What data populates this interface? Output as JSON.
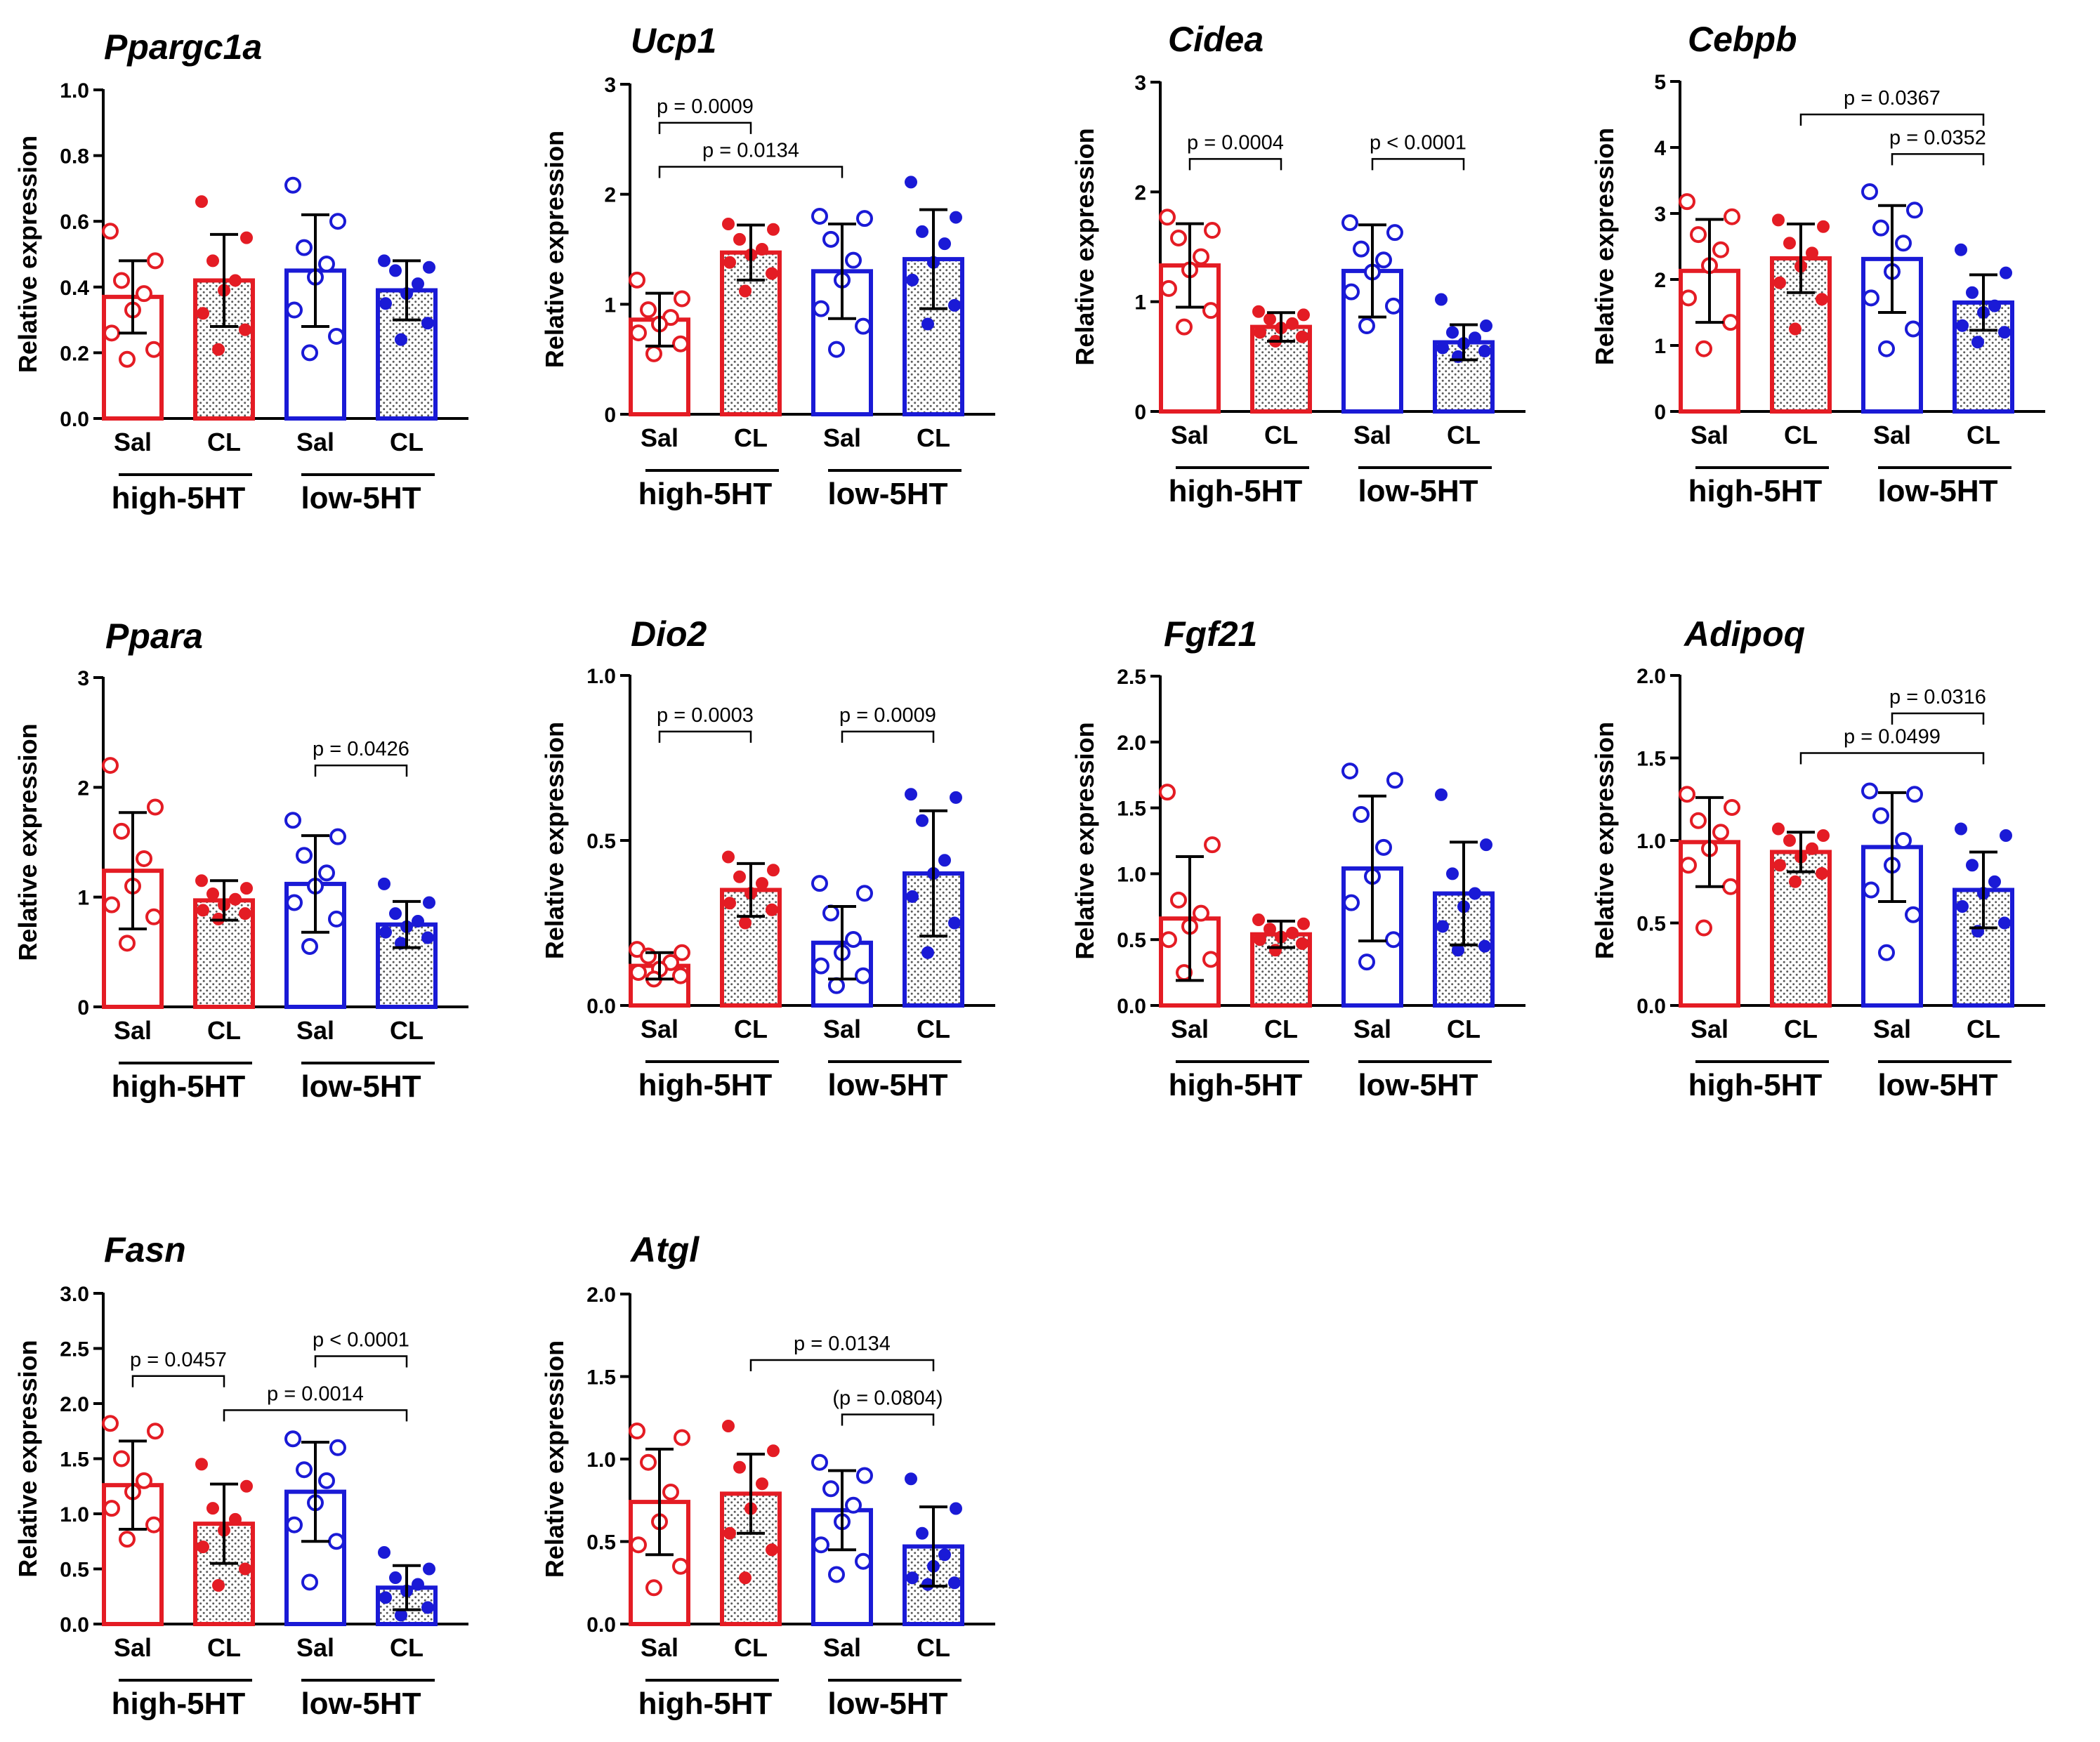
{
  "chart_data": [
    {
      "type": "bar",
      "title": "Ppargc1a",
      "ylabel": "Relative expression",
      "ylim": [
        0,
        1.0
      ],
      "yticks": [
        "0.0",
        "0.2",
        "0.4",
        "0.6",
        "0.8",
        "1.0"
      ],
      "categories": [
        "Sal",
        "CL",
        "Sal",
        "CL"
      ],
      "groups": [
        "high-5HT",
        "low-5HT"
      ],
      "means": [
        0.37,
        0.42,
        0.45,
        0.39
      ],
      "sd": [
        0.11,
        0.14,
        0.17,
        0.09
      ],
      "points": [
        [
          0.57,
          0.48,
          0.42,
          0.38,
          0.33,
          0.26,
          0.21,
          0.18
        ],
        [
          0.66,
          0.55,
          0.48,
          0.42,
          0.39,
          0.32,
          0.27,
          0.21
        ],
        [
          0.71,
          0.6,
          0.52,
          0.47,
          0.43,
          0.33,
          0.25,
          0.2
        ],
        [
          0.48,
          0.46,
          0.45,
          0.41,
          0.38,
          0.35,
          0.29,
          0.24
        ]
      ],
      "comparisons": []
    },
    {
      "type": "bar",
      "title": "Ucp1",
      "ylabel": "Relative expression",
      "ylim": [
        0,
        3
      ],
      "yticks": [
        "0",
        "1",
        "2",
        "3"
      ],
      "categories": [
        "Sal",
        "CL",
        "Sal",
        "CL"
      ],
      "groups": [
        "high-5HT",
        "low-5HT"
      ],
      "means": [
        0.86,
        1.47,
        1.3,
        1.41
      ],
      "sd": [
        0.24,
        0.25,
        0.43,
        0.45
      ],
      "points": [
        [
          1.22,
          1.05,
          0.95,
          0.88,
          0.82,
          0.74,
          0.64,
          0.55
        ],
        [
          1.73,
          1.68,
          1.59,
          1.5,
          1.45,
          1.38,
          1.28,
          1.12
        ],
        [
          1.8,
          1.78,
          1.59,
          1.4,
          1.22,
          0.96,
          0.8,
          0.59
        ],
        [
          2.11,
          1.79,
          1.66,
          1.55,
          1.38,
          1.22,
          0.99,
          0.82
        ]
      ],
      "comparisons": [
        {
          "label": "p = 0.0009",
          "from": 0,
          "to": 1,
          "y": 2.65
        },
        {
          "label": "p = 0.0134",
          "from": 0,
          "to": 2,
          "y": 2.25
        }
      ]
    },
    {
      "type": "bar",
      "title": "Cidea",
      "ylabel": "Relative expression",
      "ylim": [
        0,
        3
      ],
      "yticks": [
        "0",
        "1",
        "2",
        "3"
      ],
      "categories": [
        "Sal",
        "CL",
        "Sal",
        "CL"
      ],
      "groups": [
        "high-5HT",
        "low-5HT"
      ],
      "means": [
        1.33,
        0.77,
        1.28,
        0.63
      ],
      "sd": [
        0.38,
        0.13,
        0.42,
        0.16
      ],
      "points": [
        [
          1.77,
          1.65,
          1.58,
          1.41,
          1.29,
          1.12,
          0.92,
          0.77
        ],
        [
          0.91,
          0.88,
          0.84,
          0.8,
          0.76,
          0.72,
          0.68,
          0.64
        ],
        [
          1.72,
          1.63,
          1.48,
          1.38,
          1.27,
          1.09,
          0.96,
          0.78
        ],
        [
          1.02,
          0.78,
          0.72,
          0.67,
          0.62,
          0.58,
          0.55,
          0.5
        ]
      ],
      "comparisons": [
        {
          "label": "p = 0.0004",
          "from": 0,
          "to": 1,
          "y": 2.3
        },
        {
          "label": "p < 0.0001",
          "from": 2,
          "to": 3,
          "y": 2.3
        }
      ]
    },
    {
      "type": "bar",
      "title": "Cebpb",
      "ylabel": "Relative expression",
      "ylim": [
        0,
        5
      ],
      "yticks": [
        "0",
        "1",
        "2",
        "3",
        "4",
        "5"
      ],
      "categories": [
        "Sal",
        "CL",
        "Sal",
        "CL"
      ],
      "groups": [
        "high-5HT",
        "low-5HT"
      ],
      "means": [
        2.13,
        2.32,
        2.31,
        1.65
      ],
      "sd": [
        0.78,
        0.52,
        0.81,
        0.42
      ],
      "points": [
        [
          3.18,
          2.95,
          2.68,
          2.45,
          2.21,
          1.72,
          1.35,
          0.95
        ],
        [
          2.9,
          2.8,
          2.55,
          2.4,
          2.2,
          1.95,
          1.7,
          1.25
        ],
        [
          3.33,
          3.05,
          2.78,
          2.55,
          2.12,
          1.72,
          1.25,
          0.95
        ],
        [
          2.45,
          2.1,
          1.8,
          1.6,
          1.5,
          1.3,
          1.2,
          1.05
        ]
      ],
      "comparisons": [
        {
          "label": "p = 0.0367",
          "from": 1,
          "to": 3,
          "y": 4.5
        },
        {
          "label": "p = 0.0352",
          "from": 2,
          "to": 3,
          "y": 3.9
        }
      ]
    },
    {
      "type": "bar",
      "title": "Ppara",
      "ylabel": "Relative expression",
      "ylim": [
        0,
        3
      ],
      "yticks": [
        "0",
        "1",
        "2",
        "3"
      ],
      "categories": [
        "Sal",
        "CL",
        "Sal",
        "CL"
      ],
      "groups": [
        "high-5HT",
        "low-5HT"
      ],
      "means": [
        1.24,
        0.97,
        1.12,
        0.75
      ],
      "sd": [
        0.53,
        0.18,
        0.44,
        0.21
      ],
      "points": [
        [
          2.2,
          1.82,
          1.6,
          1.35,
          1.1,
          0.93,
          0.82,
          0.58
        ],
        [
          1.15,
          1.08,
          1.03,
          0.98,
          0.93,
          0.88,
          0.85,
          0.8
        ],
        [
          1.7,
          1.55,
          1.38,
          1.22,
          1.1,
          0.95,
          0.8,
          0.55
        ],
        [
          1.12,
          0.95,
          0.85,
          0.78,
          0.73,
          0.68,
          0.63,
          0.58
        ]
      ],
      "comparisons": [
        {
          "label": "p = 0.0426",
          "from": 2,
          "to": 3,
          "y": 2.2
        }
      ]
    },
    {
      "type": "bar",
      "title": "Dio2",
      "ylabel": "Relative expression",
      "ylim": [
        0,
        1.0
      ],
      "yticks": [
        "0.0",
        "0.5",
        "1.0"
      ],
      "categories": [
        "Sal",
        "CL",
        "Sal",
        "CL"
      ],
      "groups": [
        "high-5HT",
        "low-5HT"
      ],
      "means": [
        0.12,
        0.35,
        0.19,
        0.4
      ],
      "sd": [
        0.04,
        0.08,
        0.11,
        0.19
      ],
      "points": [
        [
          0.17,
          0.16,
          0.15,
          0.13,
          0.11,
          0.1,
          0.09,
          0.08
        ],
        [
          0.45,
          0.41,
          0.39,
          0.37,
          0.34,
          0.31,
          0.29,
          0.25
        ],
        [
          0.37,
          0.34,
          0.28,
          0.2,
          0.16,
          0.12,
          0.09,
          0.06
        ],
        [
          0.64,
          0.63,
          0.56,
          0.44,
          0.4,
          0.33,
          0.25,
          0.16
        ]
      ],
      "comparisons": [
        {
          "label": "p = 0.0003",
          "from": 0,
          "to": 1,
          "y": 0.83
        },
        {
          "label": "p = 0.0009",
          "from": 2,
          "to": 3,
          "y": 0.83
        }
      ]
    },
    {
      "type": "bar",
      "title": "Fgf21",
      "ylabel": "Relative expression",
      "ylim": [
        0,
        2.5
      ],
      "yticks": [
        "0.0",
        "0.5",
        "1.0",
        "1.5",
        "2.0",
        "2.5"
      ],
      "categories": [
        "Sal",
        "CL",
        "Sal",
        "CL"
      ],
      "groups": [
        "high-5HT",
        "low-5HT"
      ],
      "means": [
        0.66,
        0.54,
        1.04,
        0.85
      ],
      "sd": [
        0.47,
        0.1,
        0.55,
        0.39
      ],
      "points": [
        [
          1.62,
          1.22,
          0.8,
          0.7,
          0.6,
          0.5,
          0.35,
          0.25
        ],
        [
          0.65,
          0.62,
          0.58,
          0.55,
          0.52,
          0.5,
          0.47,
          0.42
        ],
        [
          1.78,
          1.71,
          1.45,
          1.2,
          0.98,
          0.78,
          0.5,
          0.33
        ],
        [
          1.6,
          1.22,
          1.0,
          0.85,
          0.75,
          0.6,
          0.45,
          0.42
        ]
      ],
      "comparisons": []
    },
    {
      "type": "bar",
      "title": "Adipoq",
      "ylabel": "Relative expression",
      "ylim": [
        0,
        2.0
      ],
      "yticks": [
        "0.0",
        "0.5",
        "1.0",
        "1.5",
        "2.0"
      ],
      "categories": [
        "Sal",
        "CL",
        "Sal",
        "CL"
      ],
      "groups": [
        "high-5HT",
        "low-5HT"
      ],
      "means": [
        0.99,
        0.93,
        0.96,
        0.7
      ],
      "sd": [
        0.27,
        0.12,
        0.33,
        0.23
      ],
      "points": [
        [
          1.28,
          1.2,
          1.12,
          1.05,
          0.95,
          0.85,
          0.72,
          0.47
        ],
        [
          1.07,
          1.03,
          1.0,
          0.95,
          0.9,
          0.85,
          0.8,
          0.75
        ],
        [
          1.3,
          1.28,
          1.15,
          1.0,
          0.85,
          0.7,
          0.55,
          0.32
        ],
        [
          1.07,
          1.03,
          0.85,
          0.75,
          0.68,
          0.6,
          0.5,
          0.45
        ]
      ],
      "comparisons": [
        {
          "label": "p = 0.0316",
          "from": 2,
          "to": 3,
          "y": 1.77
        },
        {
          "label": "p = 0.0499",
          "from": 1,
          "to": 3,
          "y": 1.53
        }
      ]
    },
    {
      "type": "bar",
      "title": "Fasn",
      "ylabel": "Relative expression",
      "ylim": [
        0,
        3.0
      ],
      "yticks": [
        "0.0",
        "0.5",
        "1.0",
        "1.5",
        "2.0",
        "2.5",
        "3.0"
      ],
      "categories": [
        "Sal",
        "CL",
        "Sal",
        "CL"
      ],
      "groups": [
        "high-5HT",
        "low-5HT"
      ],
      "means": [
        1.26,
        0.91,
        1.2,
        0.33
      ],
      "sd": [
        0.4,
        0.36,
        0.45,
        0.2
      ],
      "points": [
        [
          1.82,
          1.75,
          1.5,
          1.3,
          1.2,
          1.05,
          0.9,
          0.77
        ],
        [
          1.45,
          1.25,
          1.05,
          0.95,
          0.85,
          0.7,
          0.5,
          0.35
        ],
        [
          1.68,
          1.6,
          1.4,
          1.3,
          1.1,
          0.9,
          0.75,
          0.38
        ],
        [
          0.65,
          0.5,
          0.42,
          0.36,
          0.3,
          0.24,
          0.15,
          0.08
        ]
      ],
      "comparisons": [
        {
          "label": "p = 0.0457",
          "from": 0,
          "to": 1,
          "y": 2.25
        },
        {
          "label": "p < 0.0001",
          "from": 2,
          "to": 3,
          "y": 2.43
        },
        {
          "label": "p = 0.0014",
          "from": 1,
          "to": 3,
          "y": 1.94
        }
      ]
    },
    {
      "type": "bar",
      "title": "Atgl",
      "ylabel": "Relative expression",
      "ylim": [
        0,
        2.0
      ],
      "yticks": [
        "0.0",
        "0.5",
        "1.0",
        "1.5",
        "2.0"
      ],
      "categories": [
        "Sal",
        "CL",
        "Sal",
        "CL"
      ],
      "groups": [
        "high-5HT",
        "low-5HT"
      ],
      "means": [
        0.74,
        0.79,
        0.69,
        0.47
      ],
      "sd": [
        0.32,
        0.24,
        0.24,
        0.24
      ],
      "points": [
        [
          1.17,
          1.13,
          0.98,
          0.8,
          0.62,
          0.48,
          0.35,
          0.22
        ],
        [
          1.2,
          1.05,
          0.95,
          0.85,
          0.7,
          0.55,
          0.45,
          0.28
        ],
        [
          0.98,
          0.9,
          0.82,
          0.72,
          0.62,
          0.48,
          0.38,
          0.3
        ],
        [
          0.88,
          0.7,
          0.55,
          0.42,
          0.35,
          0.28,
          0.25,
          0.24
        ]
      ],
      "comparisons": [
        {
          "label": "p = 0.0134",
          "from": 1,
          "to": 3,
          "y": 1.6
        },
        {
          "label": "(p = 0.0804)",
          "from": 2,
          "to": 3,
          "y": 1.27
        }
      ]
    }
  ],
  "style": {
    "high_color": "#e41c24",
    "low_color": "#1a1ad6",
    "black": "#000000"
  }
}
